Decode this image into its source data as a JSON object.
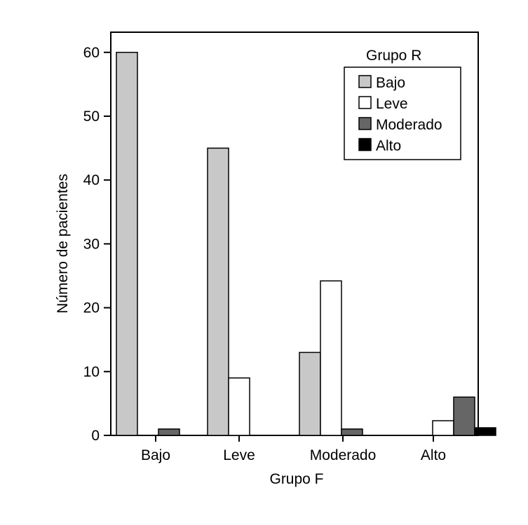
{
  "chart_data": {
    "type": "bar",
    "title": "",
    "xlabel": "Grupo F",
    "ylabel": "Número de pacientes",
    "categories": [
      "Bajo",
      "Leve",
      "Moderado",
      "Alto"
    ],
    "ylim": [
      0,
      63
    ],
    "yticks": [
      0,
      10,
      20,
      30,
      40,
      50,
      60
    ],
    "grid": false,
    "legend": {
      "title": "Grupo R",
      "placement": "top-right"
    },
    "series": [
      {
        "name": "Bajo",
        "color": "#c8c8c8",
        "values": [
          60,
          45,
          13,
          0
        ]
      },
      {
        "name": "Leve",
        "color": "#ffffff",
        "values": [
          0,
          9,
          24.2,
          2.3
        ]
      },
      {
        "name": "Moderado",
        "color": "#666666",
        "values": [
          1,
          0,
          1,
          6
        ]
      },
      {
        "name": "Alto",
        "color": "#000000",
        "values": [
          0,
          0,
          0,
          1.2
        ]
      }
    ]
  }
}
